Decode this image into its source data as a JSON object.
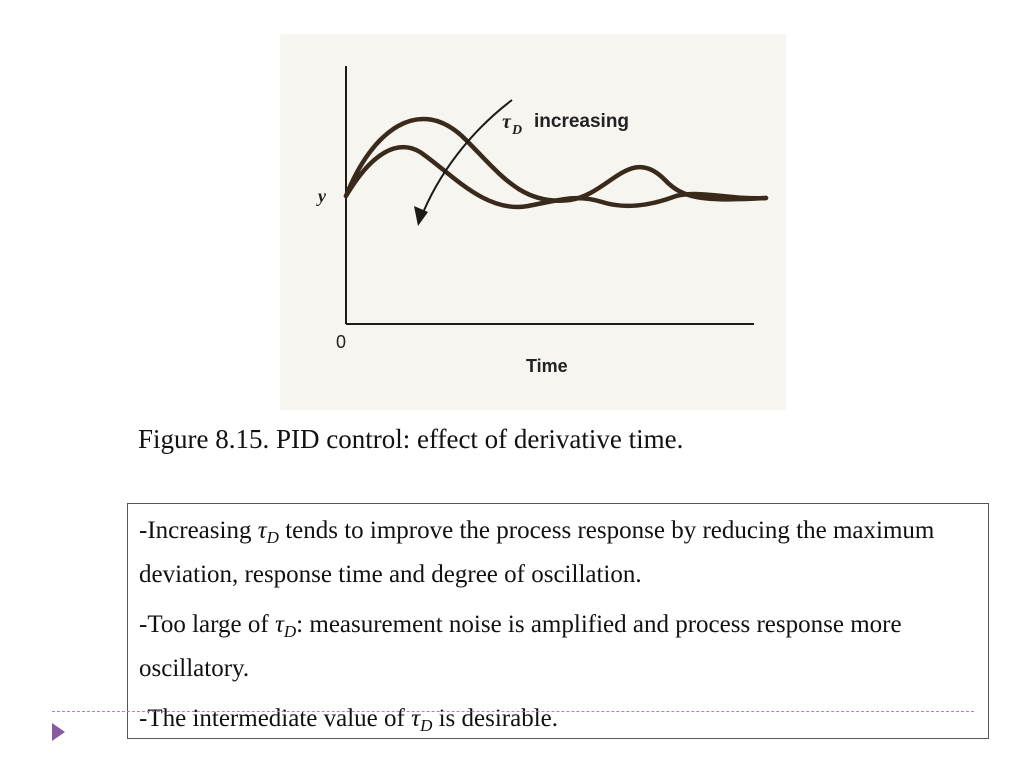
{
  "figure": {
    "y_axis_label": "y",
    "x_axis_label": "Time",
    "origin_label": "0",
    "annotation_label": "increasing",
    "annotation_symbol": "τ",
    "annotation_subscript": "D",
    "line_color": "#3a2a1c"
  },
  "caption": "Figure 8.15. PID control: effect of derivative time.",
  "notes": {
    "item1": {
      "prefix": "-Increasing ",
      "symbol": "τ",
      "subscript": "D",
      "suffix": " tends to improve the process response by reducing the maximum deviation, response time and degree of oscillation."
    },
    "item2": {
      "prefix": "-Too large of ",
      "symbol": "τ",
      "subscript": "D",
      "suffix": ": measurement noise is amplified and process response more oscillatory."
    },
    "item3": {
      "prefix": "-The intermediate value of ",
      "symbol": "τ",
      "subscript": "D",
      "suffix": " is desirable."
    }
  },
  "slide": {
    "accent_color": "#8a5aa0"
  }
}
